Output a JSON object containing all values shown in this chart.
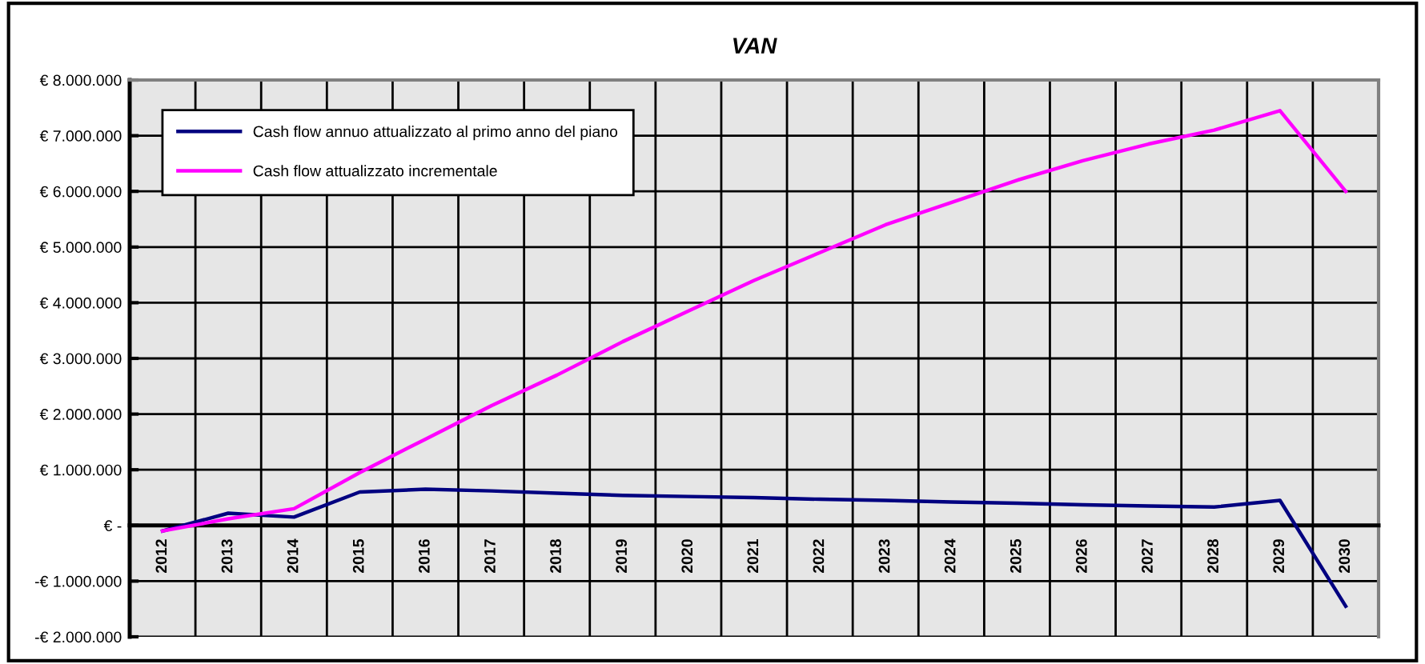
{
  "chart_data": {
    "type": "line",
    "title": "VAN",
    "categories": [
      "2012",
      "2013",
      "2014",
      "2015",
      "2016",
      "2017",
      "2018",
      "2019",
      "2020",
      "2021",
      "2022",
      "2023",
      "2024",
      "2025",
      "2026",
      "2027",
      "2028",
      "2029",
      "2030"
    ],
    "series": [
      {
        "name": "Cash flow annuo attualizzato al primo anno del piano",
        "color": "#000080",
        "values": [
          -100000.0,
          220000.0,
          150000.0,
          600000.0,
          650000.0,
          620000.0,
          580000.0,
          540000.0,
          520000.0,
          500000.0,
          470000.0,
          450000.0,
          420000.0,
          400000.0,
          370000.0,
          350000.0,
          330000.0,
          450000.0,
          -1450000.0
        ]
      },
      {
        "name": "Cash flow attualizzato incrementale",
        "color": "#ff00ff",
        "values": [
          -100000.0,
          120000.0,
          300000.0,
          950000.0,
          1550000.0,
          2150000.0,
          2700000.0,
          3300000.0,
          3850000.0,
          4400000.0,
          4900000.0,
          5400000.0,
          5800000.0,
          6200000.0,
          6550000.0,
          6850000.0,
          7100000.0,
          7450000.0,
          6000000.0
        ]
      }
    ],
    "ylim": [
      -2000000,
      8000000
    ],
    "yticks": [
      {
        "value": -2000000,
        "label": "-€ 2.000.000"
      },
      {
        "value": -1000000,
        "label": "-€ 1.000.000"
      },
      {
        "value": 0,
        "label": "€ -"
      },
      {
        "value": 1000000,
        "label": "€ 1.000.000"
      },
      {
        "value": 2000000,
        "label": "€ 2.000.000"
      },
      {
        "value": 3000000,
        "label": "€ 3.000.000"
      },
      {
        "value": 4000000,
        "label": "€ 4.000.000"
      },
      {
        "value": 5000000,
        "label": "€ 5.000.000"
      },
      {
        "value": 6000000,
        "label": "€ 6.000.000"
      },
      {
        "value": 7000000,
        "label": "€ 7.000.000"
      },
      {
        "value": 8000000,
        "label": "€ 8.000.000"
      }
    ],
    "grid": true,
    "legend": "top left",
    "marker": "none",
    "line_style": "solid"
  }
}
